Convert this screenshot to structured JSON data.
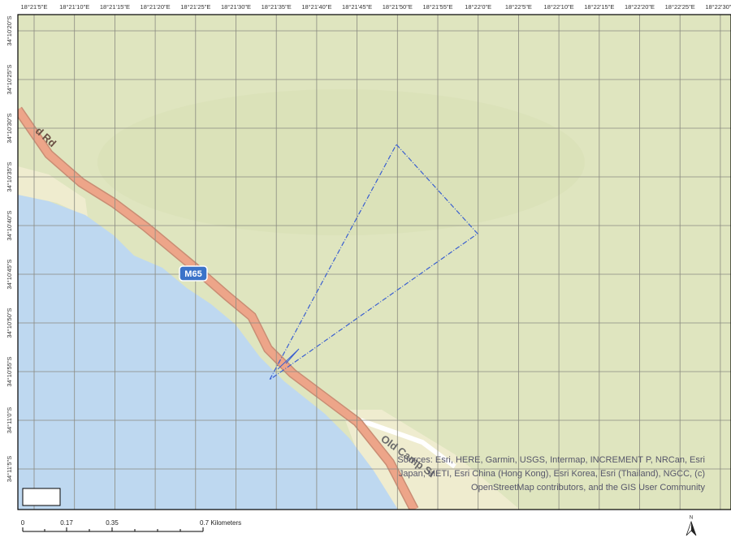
{
  "map": {
    "longitude_labels": [
      "18°21'5\"E",
      "18°21'10\"E",
      "18°21'15\"E",
      "18°21'20\"E",
      "18°21'25\"E",
      "18°21'30\"E",
      "18°21'35\"E",
      "18°21'40\"E",
      "18°21'45\"E",
      "18°21'50\"E",
      "18°21'55\"E",
      "18°22'0\"E",
      "18°22'5\"E",
      "18°22'10\"E",
      "18°22'15\"E",
      "18°22'20\"E",
      "18°22'25\"E",
      "18°22'30\"E"
    ],
    "latitude_labels": [
      "34°10'20\"S",
      "34°10'25\"S",
      "34°10'30\"S",
      "34°10'35\"S",
      "34°10'40\"S",
      "34°10'45\"S",
      "34°10'50\"S",
      "34°10'55\"S",
      "34°11'0\"S",
      "34°11'5\"S"
    ],
    "road_labels": [
      "d Rd",
      "M65",
      "Old Camp St"
    ],
    "attribution": [
      "Sources: Esri, HERE, Garmin, USGS, Intermap, INCREMENT P, NRCan, Esri",
      "Japan, METI, Esri China (Hong Kong), Esri Korea, Esri (Thailand), NGCC, (c)",
      "OpenStreetMap contributors, and the GIS User Community"
    ],
    "scale_labels": [
      "0",
      "0.17",
      "0.35",
      "0.7 Kilometers"
    ],
    "north_label": "N"
  }
}
